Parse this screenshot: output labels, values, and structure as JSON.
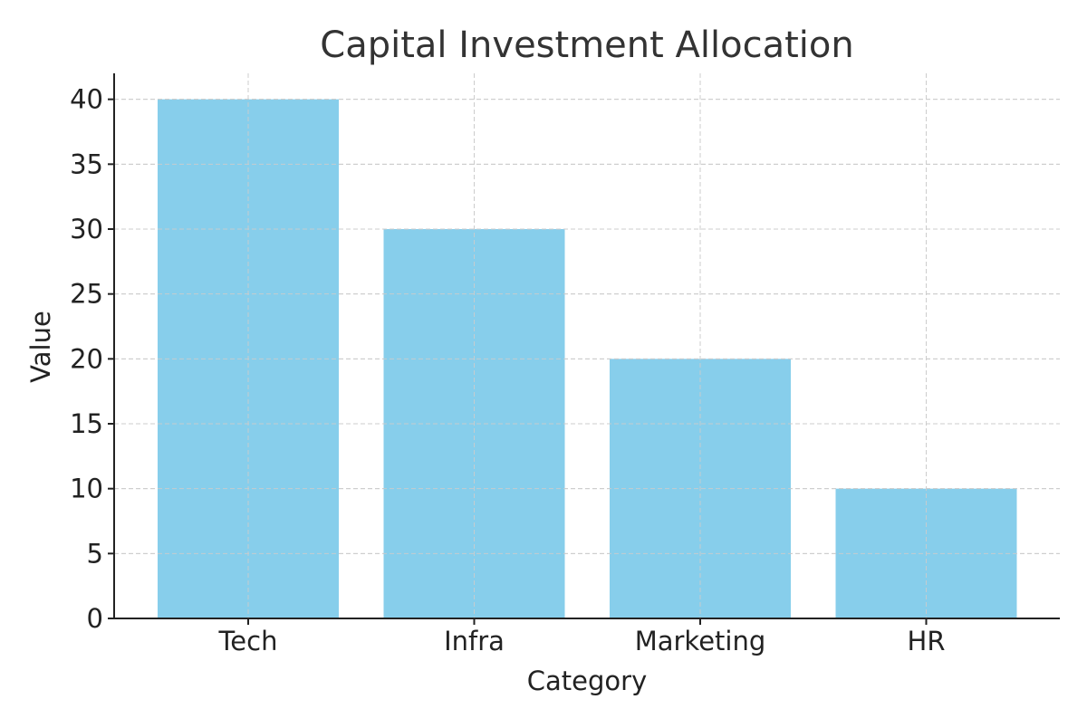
{
  "chart_data": {
    "type": "bar",
    "title": "Capital Investment Allocation",
    "xlabel": "Category",
    "ylabel": "Value",
    "categories": [
      "Tech",
      "Infra",
      "Marketing",
      "HR"
    ],
    "values": [
      40,
      30,
      20,
      10
    ],
    "ylim": [
      0,
      42
    ],
    "yticks": [
      0,
      5,
      10,
      15,
      20,
      25,
      30,
      35,
      40
    ],
    "grid": true,
    "legend": "none",
    "colors": {
      "bar": "#87CEEB",
      "grid": "#cccccc",
      "axis": "#222222",
      "text": "#222222",
      "title": "#333333"
    }
  }
}
